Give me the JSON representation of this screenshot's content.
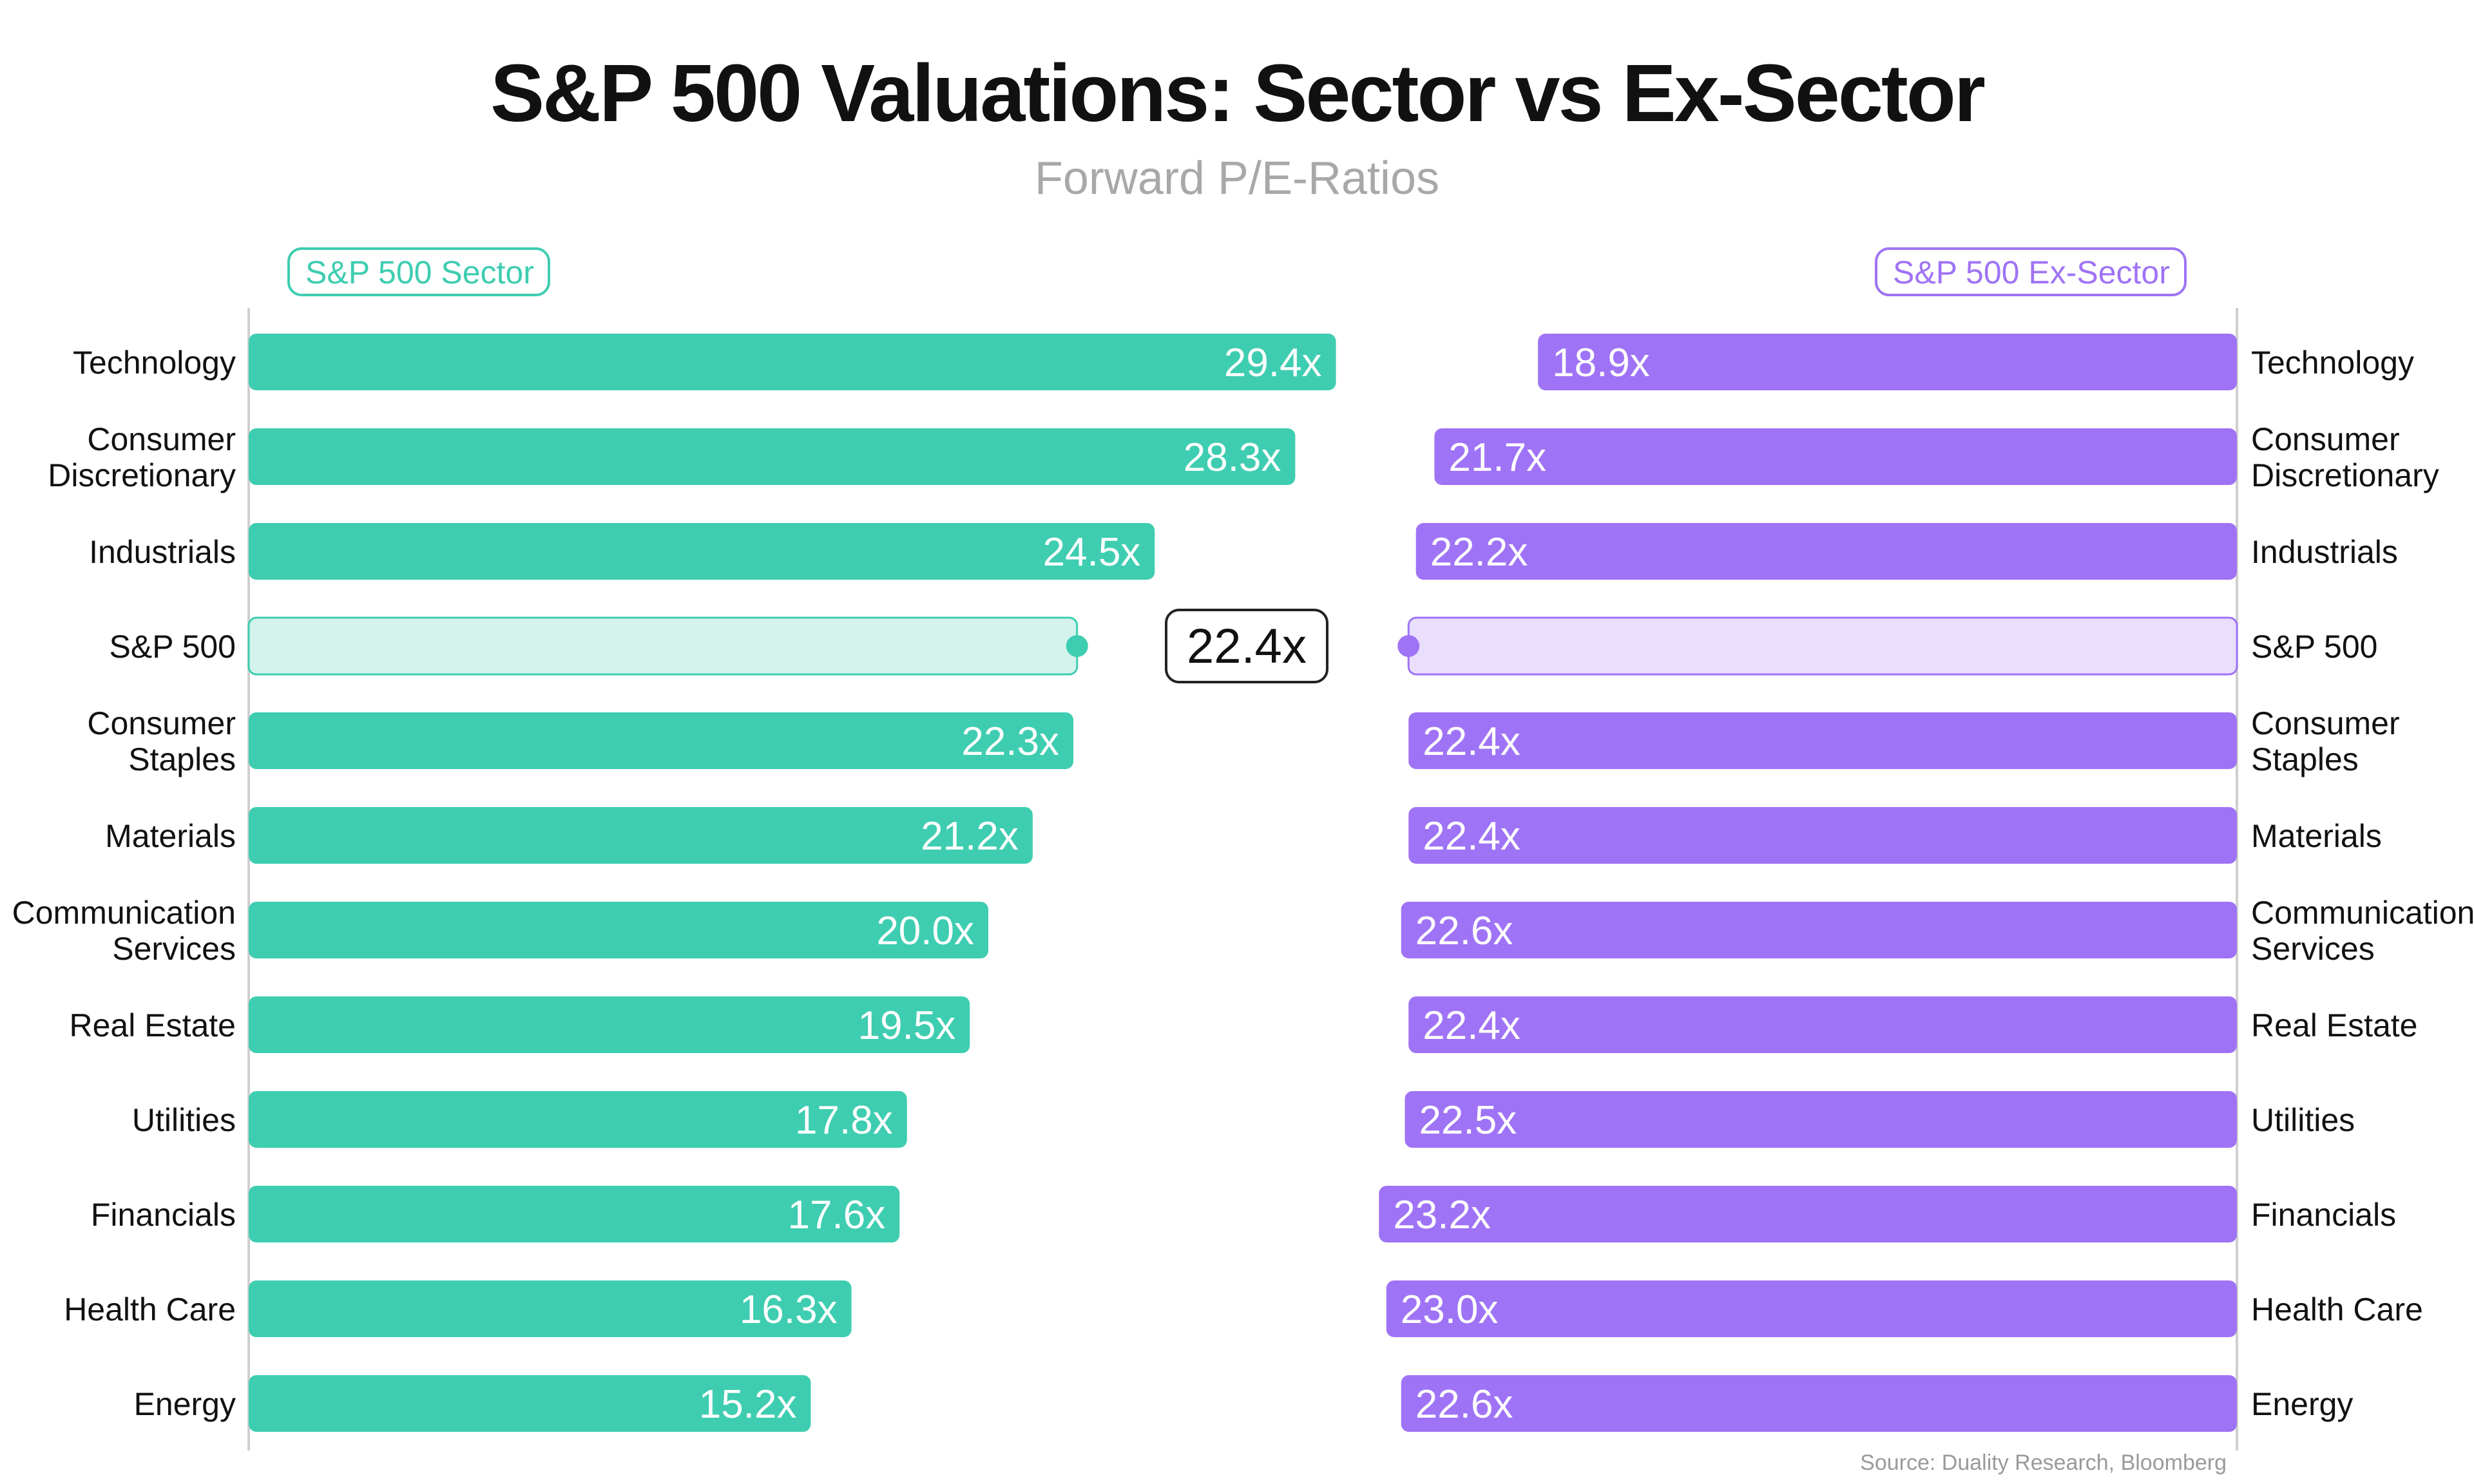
{
  "title": "S&P 500 Valuations: Sector vs Ex-Sector",
  "subtitle": "Forward P/E-Ratios",
  "source": "Source: Duality Research, Bloomberg",
  "colors": {
    "sector": "#3ecdb0",
    "sector_light": "#d3f3ec",
    "ex_sector": "#9f73f5",
    "ex_sector_light": "#e9dffd",
    "axis": "#cfcfcf",
    "text": "#111111"
  },
  "chart_data": {
    "type": "bar",
    "title": "S&P 500 Valuations: Sector vs Ex-Sector",
    "subtitle": "Forward P/E-Ratios",
    "orientation": "horizontal",
    "categories": [
      "Technology",
      "Consumer Discretionary",
      "Industrials",
      "S&P 500",
      "Consumer Staples",
      "Materials",
      "Communication Services",
      "Real Estate",
      "Utilities",
      "Financials",
      "Health Care",
      "Energy"
    ],
    "category_labels": [
      [
        "Technology"
      ],
      [
        "Consumer",
        "Discretionary"
      ],
      [
        "Industrials"
      ],
      [
        "S&P 500"
      ],
      [
        "Consumer",
        "Staples"
      ],
      [
        "Materials"
      ],
      [
        "Communication",
        "Services"
      ],
      [
        "Real Estate"
      ],
      [
        "Utilities"
      ],
      [
        "Financials"
      ],
      [
        "Health Care"
      ],
      [
        "Energy"
      ]
    ],
    "series": [
      {
        "name": "S&P 500 Sector",
        "values": [
          29.4,
          28.3,
          24.5,
          22.4,
          22.3,
          21.2,
          20.0,
          19.5,
          17.8,
          17.6,
          16.3,
          15.2
        ],
        "labels": [
          "29.4x",
          "28.3x",
          "24.5x",
          "",
          "22.3x",
          "21.2x",
          "20.0x",
          "19.5x",
          "17.8x",
          "17.6x",
          "16.3x",
          "15.2x"
        ]
      },
      {
        "name": "S&P 500 Ex-Sector",
        "values": [
          18.9,
          21.7,
          22.2,
          22.4,
          22.4,
          22.4,
          22.6,
          22.4,
          22.5,
          23.2,
          23.0,
          22.6
        ],
        "labels": [
          "18.9x",
          "21.7x",
          "22.2x",
          "",
          "22.4x",
          "22.4x",
          "22.6x",
          "22.4x",
          "22.5x",
          "23.2x",
          "23.0x",
          "22.6x"
        ]
      }
    ],
    "benchmark": {
      "category": "S&P 500",
      "value": 22.4,
      "label": "22.4x"
    },
    "ylim": [
      0,
      30
    ],
    "xlabel": "",
    "ylabel": "",
    "grid": false,
    "legend": "top"
  }
}
